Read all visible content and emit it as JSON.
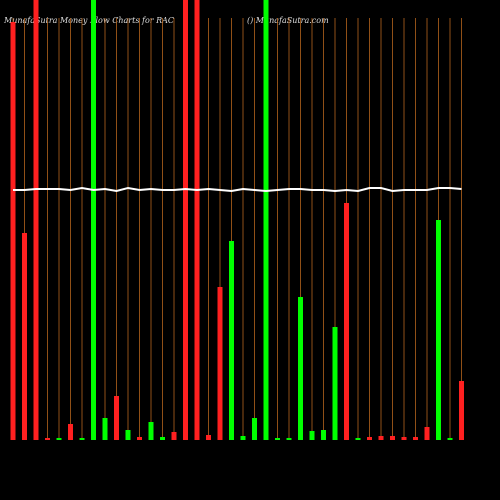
{
  "chart_data": {
    "type": "bar",
    "title": "MunafaSutra  Money Flow  Charts for RAC",
    "subtitle": "() MunafaSutra.com",
    "values": [
      418,
      207,
      440,
      2,
      2,
      16,
      2,
      440,
      22,
      44,
      10,
      3,
      18,
      3,
      8,
      440,
      440,
      5,
      153,
      199,
      4,
      22,
      440,
      2,
      2,
      143,
      9,
      10,
      113,
      237,
      2,
      3,
      4,
      4,
      3,
      3,
      13,
      220,
      2,
      59
    ],
    "colors": [
      "#ff2020",
      "#ff2020",
      "#ff2020",
      "#ff2020",
      "#00ff00",
      "#ff2020",
      "#00ff00",
      "#00ff00",
      "#00ff00",
      "#ff2020",
      "#00ff00",
      "#ff2020",
      "#00ff00",
      "#00ff00",
      "#ff2020",
      "#ff2020",
      "#ff2020",
      "#ff2020",
      "#ff2020",
      "#00ff00",
      "#00ff00",
      "#00ff00",
      "#00ff00",
      "#00ff00",
      "#00ff00",
      "#00ff00",
      "#00ff00",
      "#00ff00",
      "#00ff00",
      "#ff2020",
      "#00ff00",
      "#ff2020",
      "#ff2020",
      "#ff2020",
      "#ff2020",
      "#ff2020",
      "#ff2020",
      "#00ff00",
      "#00ff00",
      "#ff2020"
    ],
    "line": {
      "color": "#ffffff",
      "values": [
        250,
        250,
        251,
        251,
        251,
        250,
        252,
        250,
        251,
        249,
        252,
        250,
        251,
        250,
        250,
        251,
        250,
        251,
        250,
        249,
        251,
        250,
        249,
        250,
        251,
        251,
        250,
        250,
        249,
        250,
        249,
        252,
        252,
        249,
        250,
        250,
        250,
        252,
        252,
        251
      ]
    },
    "ylim": [
      0,
      440
    ],
    "gridcolor": "#b5651d"
  }
}
